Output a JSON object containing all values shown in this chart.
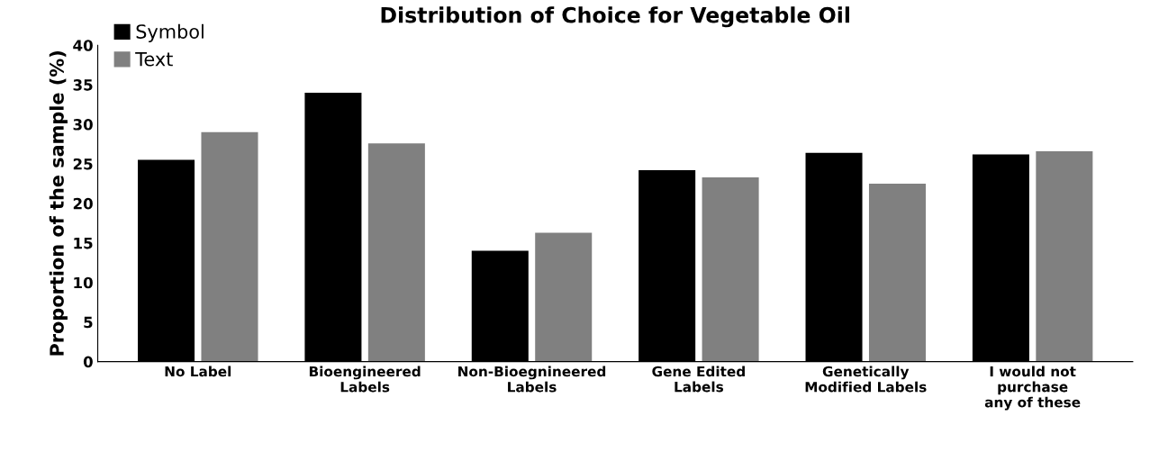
{
  "chart_data": {
    "type": "bar",
    "title": "Distribution of Choice for Vegetable Oil",
    "ylabel": "Proportion of the sample (%)",
    "categories": [
      "No Label",
      "Bioengineered\nLabels",
      "Non-Bioegnineered\nLabels",
      "Gene Edited\nLabels",
      "Genetically\nModified Labels",
      "I would not\npurchase\nany of these"
    ],
    "series": [
      {
        "name": "Symbol",
        "color": "#000000",
        "values": [
          25.5,
          34.0,
          14.0,
          24.2,
          26.4,
          26.2
        ]
      },
      {
        "name": "Text",
        "color": "#808080",
        "values": [
          29.0,
          27.6,
          16.3,
          23.3,
          22.5,
          26.6
        ]
      }
    ],
    "ylim": [
      0,
      40
    ],
    "yticks": [
      0,
      5,
      10,
      15,
      20,
      25,
      30,
      35,
      40
    ],
    "grid": false,
    "legend": "top left"
  }
}
